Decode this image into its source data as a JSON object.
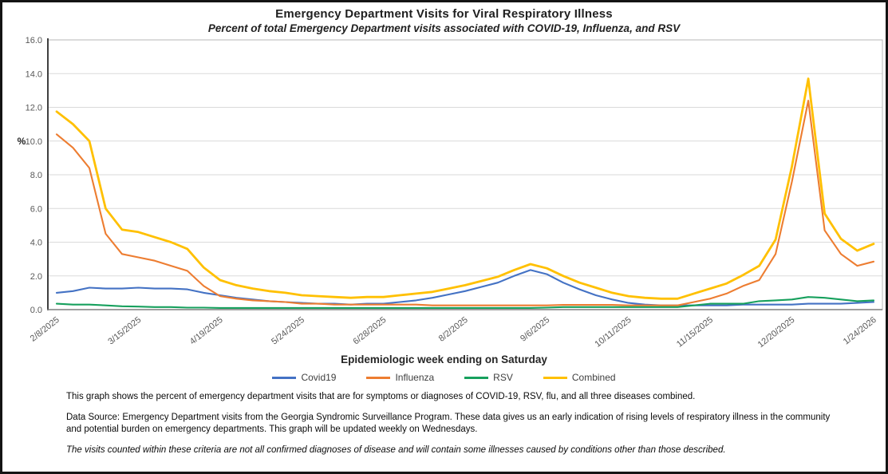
{
  "chart_data": {
    "type": "line",
    "title": "Emergency Department Visits for Viral Respiratory Illness",
    "subtitle": "Percent of total Emergency Department visits associated with COVID-19, Influenza, and RSV",
    "xlabel": "Epidemiologic week ending on Saturday",
    "ylabel": "%",
    "ylim": [
      0,
      16
    ],
    "y_step": 2,
    "grid": "horizontal",
    "legend_position": "bottom",
    "x": [
      "2/8/2025",
      "2/15/2025",
      "2/22/2025",
      "3/1/2025",
      "3/8/2025",
      "3/15/2025",
      "3/22/2025",
      "3/29/2025",
      "4/5/2025",
      "4/12/2025",
      "4/19/2025",
      "4/26/2025",
      "5/3/2025",
      "5/10/2025",
      "5/17/2025",
      "5/24/2025",
      "5/31/2025",
      "6/7/2025",
      "6/14/2025",
      "6/21/2025",
      "6/28/2025",
      "7/5/2025",
      "7/12/2025",
      "7/19/2025",
      "7/26/2025",
      "8/2/2025",
      "8/9/2025",
      "8/16/2025",
      "8/23/2025",
      "8/30/2025",
      "9/6/2025",
      "9/13/2025",
      "9/20/2025",
      "9/27/2025",
      "10/4/2025",
      "10/11/2025",
      "10/18/2025",
      "10/25/2025",
      "11/1/2025",
      "11/8/2025",
      "11/15/2025",
      "11/22/2025",
      "11/29/2025",
      "12/6/2025",
      "12/13/2025",
      "12/20/2025",
      "12/27/2025",
      "1/3/2026",
      "1/10/2026",
      "1/17/2026",
      "1/24/2026"
    ],
    "x_tick_labels": [
      "2/8/2025",
      "3/15/2025",
      "4/19/2025",
      "5/24/2025",
      "6/28/2025",
      "8/2/2025",
      "9/6/2025",
      "10/11/2025",
      "11/15/2025",
      "12/20/2025",
      "1/24/2026"
    ],
    "x_tick_every": 5,
    "series": [
      {
        "name": "Covid19",
        "color": "#4472c4",
        "values": [
          1.0,
          1.1,
          1.3,
          1.25,
          1.25,
          1.3,
          1.25,
          1.25,
          1.2,
          1.0,
          0.85,
          0.7,
          0.6,
          0.5,
          0.45,
          0.4,
          0.35,
          0.35,
          0.3,
          0.35,
          0.35,
          0.45,
          0.55,
          0.7,
          0.9,
          1.1,
          1.35,
          1.6,
          2.0,
          2.35,
          2.1,
          1.6,
          1.2,
          0.85,
          0.6,
          0.4,
          0.3,
          0.25,
          0.25,
          0.25,
          0.25,
          0.25,
          0.3,
          0.3,
          0.3,
          0.3,
          0.35,
          0.35,
          0.35,
          0.4,
          0.45
        ]
      },
      {
        "name": "Influenza",
        "color": "#ed7d31",
        "values": [
          10.4,
          9.6,
          8.4,
          4.5,
          3.3,
          3.1,
          2.9,
          2.6,
          2.3,
          1.4,
          0.8,
          0.65,
          0.55,
          0.5,
          0.45,
          0.35,
          0.35,
          0.3,
          0.3,
          0.3,
          0.3,
          0.3,
          0.3,
          0.25,
          0.25,
          0.25,
          0.25,
          0.25,
          0.25,
          0.25,
          0.25,
          0.28,
          0.28,
          0.28,
          0.28,
          0.25,
          0.25,
          0.25,
          0.25,
          0.45,
          0.65,
          0.95,
          1.4,
          1.75,
          3.3,
          7.6,
          12.4,
          4.7,
          3.3,
          2.6,
          2.85
        ]
      },
      {
        "name": "RSV",
        "color": "#17a05d",
        "values": [
          0.35,
          0.3,
          0.3,
          0.25,
          0.2,
          0.18,
          0.15,
          0.15,
          0.12,
          0.12,
          0.1,
          0.1,
          0.1,
          0.1,
          0.1,
          0.1,
          0.1,
          0.1,
          0.1,
          0.1,
          0.1,
          0.1,
          0.1,
          0.1,
          0.1,
          0.1,
          0.1,
          0.1,
          0.1,
          0.1,
          0.12,
          0.15,
          0.15,
          0.15,
          0.15,
          0.15,
          0.15,
          0.15,
          0.15,
          0.25,
          0.35,
          0.35,
          0.35,
          0.5,
          0.55,
          0.6,
          0.75,
          0.7,
          0.6,
          0.5,
          0.55
        ]
      },
      {
        "name": "Combined",
        "color": "#ffc000",
        "values": [
          11.75,
          11.0,
          10.0,
          6.0,
          4.75,
          4.6,
          4.3,
          4.0,
          3.6,
          2.5,
          1.75,
          1.45,
          1.25,
          1.1,
          1.0,
          0.85,
          0.8,
          0.75,
          0.7,
          0.75,
          0.75,
          0.85,
          0.95,
          1.05,
          1.25,
          1.45,
          1.7,
          1.95,
          2.35,
          2.7,
          2.45,
          2.0,
          1.6,
          1.3,
          1.0,
          0.8,
          0.7,
          0.65,
          0.65,
          0.95,
          1.25,
          1.55,
          2.05,
          2.6,
          4.15,
          8.5,
          13.7,
          5.7,
          4.2,
          3.5,
          3.9
        ]
      }
    ]
  },
  "footer": {
    "para1": "This graph shows the percent of emergency department visits that are for symptoms or diagnoses of COVID-19, RSV, flu, and all three diseases combined.",
    "para2": "Data Source: Emergency Department visits from the Georgia Syndromic Surveillance Program. These data gives us an early indication of rising levels of respiratory illness in the community and potential burden on emergency departments. This graph will be updated weekly on Wednesdays.",
    "para3": "The visits counted within these criteria are not all confirmed diagnoses of disease and will contain some illnesses caused by conditions other than those described."
  }
}
